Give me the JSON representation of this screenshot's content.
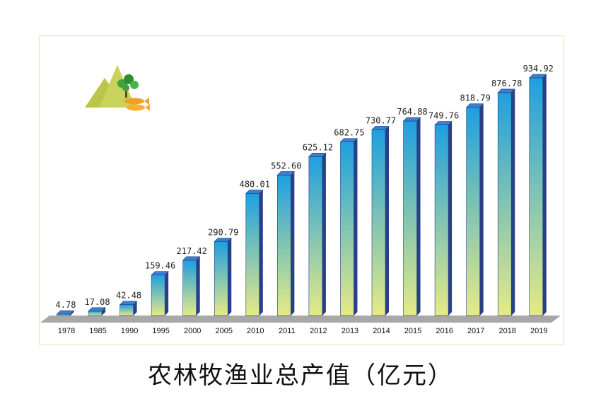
{
  "chart_data": {
    "type": "bar",
    "title": "农林牧渔业总产值（亿元）",
    "categories": [
      "1978",
      "1985",
      "1990",
      "1995",
      "2000",
      "2005",
      "2010",
      "2011",
      "2012",
      "2013",
      "2014",
      "2015",
      "2016",
      "2017",
      "2018",
      "2019"
    ],
    "values": [
      4.78,
      17.08,
      42.48,
      159.46,
      217.42,
      290.79,
      480.01,
      552.6,
      625.12,
      682.75,
      730.77,
      764.88,
      749.76,
      818.79,
      876.78,
      934.92
    ],
    "value_labels": [
      "4.78",
      "17.08",
      "42.48",
      "159.46",
      "217.42",
      "290.79",
      "480.01",
      "552.60",
      "625.12",
      "682.75",
      "730.77",
      "764.88",
      "749.76",
      "818.79",
      "876.78",
      "934.92"
    ],
    "xlabel": "",
    "ylabel": "",
    "ylim": [
      0,
      1000
    ],
    "grid": false,
    "legend": "none",
    "style": "3d-bars",
    "colors": {
      "bar_top": "#1e9fe0",
      "bar_bottom": "#e6ea86",
      "bar_side": "#2a3f8a",
      "bar_cap": "#3a7fd0",
      "floor": "#a8a8a8",
      "frame": "#dfe8b4"
    }
  },
  "decoration": {
    "icon": "mountain-tree-fish-logo-icon",
    "colors": {
      "mountain": "#b8c64a",
      "tree": "#3fa33f",
      "fish": "#f0a020"
    }
  }
}
